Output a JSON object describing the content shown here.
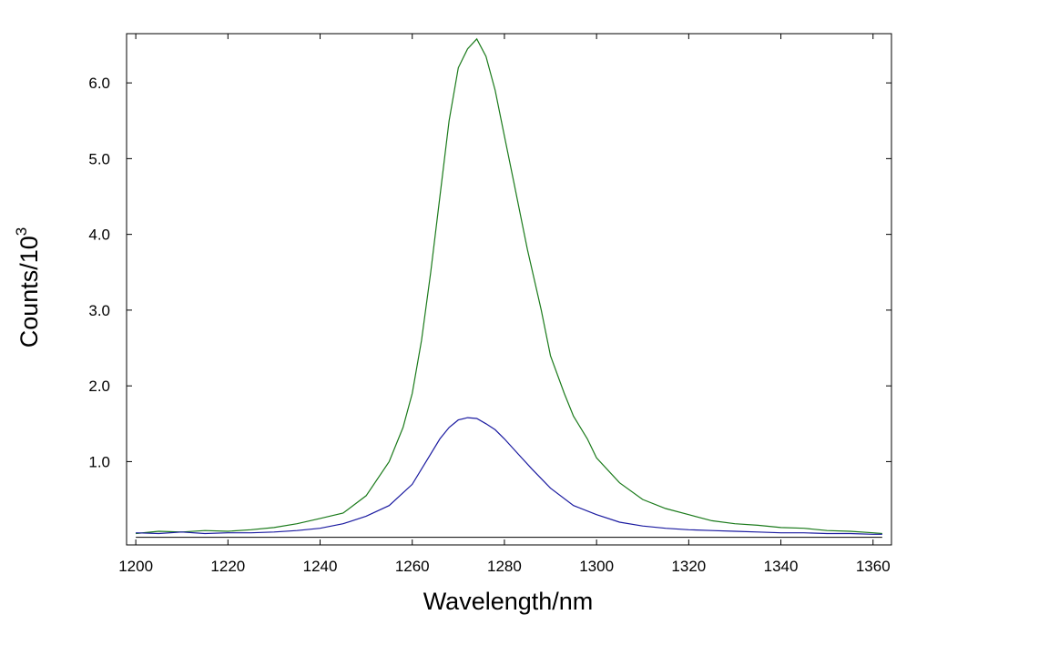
{
  "chart_data": {
    "type": "line",
    "xlabel": "Wavelength/nm",
    "ylabel": "Counts/10",
    "ylabel_superscript": "3",
    "xlim": [
      1198,
      1364
    ],
    "ylim": [
      -0.1,
      6.65
    ],
    "x_ticks": [
      1200,
      1220,
      1240,
      1260,
      1280,
      1300,
      1320,
      1340,
      1360
    ],
    "y_ticks": [
      1.0,
      2.0,
      3.0,
      4.0,
      5.0,
      6.0
    ],
    "y_tick_labels": [
      "1.0",
      "2.0",
      "3.0",
      "4.0",
      "5.0",
      "6.0"
    ],
    "baseline": 0,
    "grid": false,
    "legend": "none",
    "series": [
      {
        "color": "#1a7a1a",
        "x": [
          1200,
          1205,
          1210,
          1215,
          1220,
          1225,
          1230,
          1235,
          1240,
          1245,
          1250,
          1255,
          1258,
          1260,
          1262,
          1264,
          1266,
          1268,
          1270,
          1272,
          1274,
          1276,
          1278,
          1280,
          1282,
          1285,
          1288,
          1290,
          1293,
          1295,
          1298,
          1300,
          1305,
          1310,
          1315,
          1320,
          1325,
          1330,
          1335,
          1340,
          1345,
          1350,
          1355,
          1360,
          1362
        ],
        "y": [
          0.05,
          0.08,
          0.07,
          0.09,
          0.08,
          0.1,
          0.13,
          0.18,
          0.25,
          0.32,
          0.55,
          1.0,
          1.45,
          1.9,
          2.6,
          3.5,
          4.5,
          5.5,
          6.2,
          6.45,
          6.58,
          6.35,
          5.9,
          5.3,
          4.7,
          3.8,
          3.0,
          2.4,
          1.9,
          1.6,
          1.3,
          1.05,
          0.72,
          0.5,
          0.38,
          0.3,
          0.22,
          0.18,
          0.16,
          0.13,
          0.12,
          0.09,
          0.08,
          0.06,
          0.05
        ]
      },
      {
        "color": "#1a1aa0",
        "x": [
          1200,
          1205,
          1210,
          1215,
          1220,
          1225,
          1230,
          1235,
          1240,
          1245,
          1250,
          1255,
          1260,
          1263,
          1266,
          1268,
          1270,
          1272,
          1274,
          1276,
          1278,
          1280,
          1283,
          1286,
          1290,
          1295,
          1300,
          1305,
          1310,
          1315,
          1320,
          1325,
          1330,
          1335,
          1340,
          1345,
          1350,
          1355,
          1360,
          1362
        ],
        "y": [
          0.06,
          0.05,
          0.07,
          0.05,
          0.06,
          0.06,
          0.07,
          0.09,
          0.12,
          0.18,
          0.28,
          0.42,
          0.7,
          1.0,
          1.3,
          1.45,
          1.55,
          1.58,
          1.57,
          1.5,
          1.42,
          1.3,
          1.1,
          0.9,
          0.65,
          0.42,
          0.3,
          0.2,
          0.15,
          0.12,
          0.1,
          0.09,
          0.08,
          0.07,
          0.06,
          0.06,
          0.05,
          0.05,
          0.04,
          0.04
        ]
      }
    ]
  }
}
